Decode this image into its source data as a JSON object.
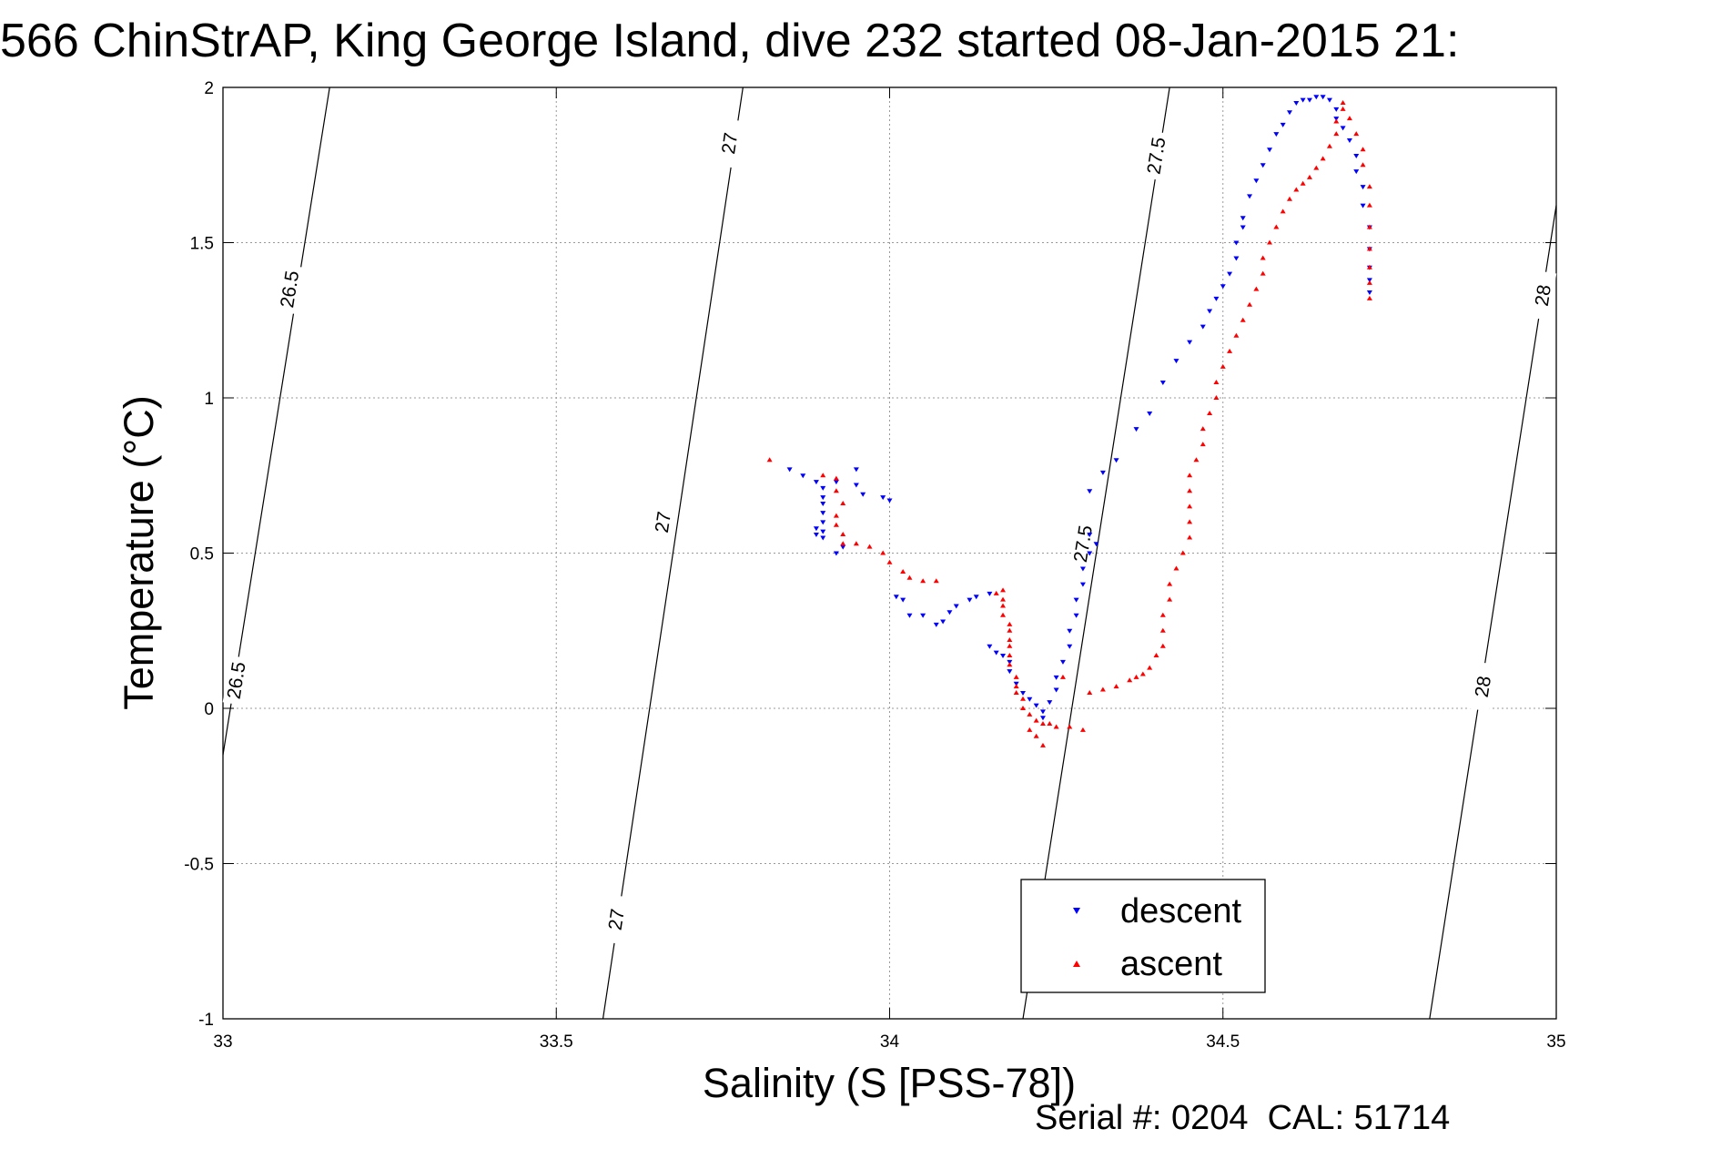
{
  "chart_data": {
    "type": "scatter",
    "title": "566 ChinStrAP, King George Island, dive 232 started 08-Jan-2015 21:",
    "xlabel": "Salinity (S [PSS-78])",
    "ylabel": "Temperature (°C)",
    "xlim": [
      33,
      35
    ],
    "ylim": [
      -1,
      2
    ],
    "x_ticks": [
      "33",
      "33.5",
      "34",
      "34.5",
      "35"
    ],
    "y_ticks": [
      "2",
      "1.5",
      "1",
      "0.5",
      "0",
      "-0.5",
      "-1"
    ],
    "grid": true,
    "legend": {
      "position": "bottom-right",
      "entries": [
        "descent",
        "ascent"
      ]
    },
    "footer": "Serial #: 0204  CAL: 51714",
    "colors": {
      "descent": "#0000ff",
      "ascent": "#ff0000",
      "grid": "#999999",
      "contour": "#000000"
    },
    "density_contours": [
      {
        "sigma": 26.5,
        "label": "26.5",
        "points": [
          [
            33.0,
            -0.15
          ],
          [
            33.16,
            2.0
          ]
        ],
        "labels_at": [
          [
            33.02,
            0.09
          ],
          [
            33.1,
            1.35
          ]
        ]
      },
      {
        "sigma": 27.0,
        "label": "27",
        "points": [
          [
            33.57,
            -1.0
          ],
          [
            33.78,
            2.0
          ]
        ],
        "labels_at": [
          [
            33.59,
            -0.68
          ],
          [
            33.66,
            0.6
          ],
          [
            33.76,
            1.82
          ]
        ]
      },
      {
        "sigma": 27.5,
        "label": "27.5",
        "points": [
          [
            34.2,
            -1.0
          ],
          [
            34.42,
            2.0
          ]
        ],
        "labels_at": [
          [
            34.29,
            0.53
          ],
          [
            34.4,
            1.78
          ]
        ]
      },
      {
        "sigma": 28.0,
        "label": "28",
        "points": [
          [
            34.81,
            -1.0
          ],
          [
            35.0,
            1.62
          ]
        ],
        "labels_at": [
          [
            34.89,
            0.07
          ],
          [
            34.98,
            1.33
          ]
        ]
      }
    ],
    "series": [
      {
        "name": "descent",
        "marker": "triangle-down",
        "points": [
          [
            33.85,
            0.77
          ],
          [
            33.87,
            0.75
          ],
          [
            33.89,
            0.73
          ],
          [
            33.9,
            0.71
          ],
          [
            33.9,
            0.68
          ],
          [
            33.9,
            0.66
          ],
          [
            33.9,
            0.63
          ],
          [
            33.9,
            0.6
          ],
          [
            33.89,
            0.58
          ],
          [
            33.89,
            0.56
          ],
          [
            33.9,
            0.55
          ],
          [
            33.9,
            0.57
          ],
          [
            33.92,
            0.5
          ],
          [
            33.93,
            0.52
          ],
          [
            33.92,
            0.73
          ],
          [
            33.95,
            0.77
          ],
          [
            33.95,
            0.72
          ],
          [
            33.96,
            0.69
          ],
          [
            33.99,
            0.68
          ],
          [
            34.0,
            0.67
          ],
          [
            34.01,
            0.36
          ],
          [
            34.02,
            0.35
          ],
          [
            34.03,
            0.3
          ],
          [
            34.05,
            0.3
          ],
          [
            34.07,
            0.27
          ],
          [
            34.08,
            0.28
          ],
          [
            34.09,
            0.31
          ],
          [
            34.1,
            0.33
          ],
          [
            34.12,
            0.35
          ],
          [
            34.13,
            0.36
          ],
          [
            34.15,
            0.37
          ],
          [
            34.15,
            0.2
          ],
          [
            34.16,
            0.18
          ],
          [
            34.17,
            0.17
          ],
          [
            34.18,
            0.15
          ],
          [
            34.18,
            0.12
          ],
          [
            34.19,
            0.08
          ],
          [
            34.2,
            0.05
          ],
          [
            34.21,
            0.03
          ],
          [
            34.22,
            0.01
          ],
          [
            34.23,
            -0.01
          ],
          [
            34.23,
            -0.03
          ],
          [
            34.24,
            0.02
          ],
          [
            34.25,
            0.06
          ],
          [
            34.25,
            0.1
          ],
          [
            34.26,
            0.15
          ],
          [
            34.27,
            0.2
          ],
          [
            34.27,
            0.25
          ],
          [
            34.28,
            0.3
          ],
          [
            34.28,
            0.35
          ],
          [
            34.29,
            0.4
          ],
          [
            34.29,
            0.45
          ],
          [
            34.3,
            0.5
          ],
          [
            34.31,
            0.53
          ],
          [
            34.3,
            0.56
          ],
          [
            34.3,
            0.7
          ],
          [
            34.32,
            0.76
          ],
          [
            34.34,
            0.8
          ],
          [
            34.37,
            0.9
          ],
          [
            34.39,
            0.95
          ],
          [
            34.41,
            1.05
          ],
          [
            34.43,
            1.12
          ],
          [
            34.45,
            1.18
          ],
          [
            34.47,
            1.23
          ],
          [
            34.48,
            1.28
          ],
          [
            34.49,
            1.32
          ],
          [
            34.5,
            1.36
          ],
          [
            34.51,
            1.4
          ],
          [
            34.52,
            1.45
          ],
          [
            34.52,
            1.5
          ],
          [
            34.53,
            1.55
          ],
          [
            34.53,
            1.58
          ],
          [
            34.54,
            1.65
          ],
          [
            34.55,
            1.7
          ],
          [
            34.56,
            1.75
          ],
          [
            34.57,
            1.8
          ],
          [
            34.58,
            1.85
          ],
          [
            34.59,
            1.88
          ],
          [
            34.6,
            1.92
          ],
          [
            34.61,
            1.95
          ],
          [
            34.62,
            1.96
          ],
          [
            34.63,
            1.96
          ],
          [
            34.64,
            1.97
          ],
          [
            34.65,
            1.97
          ],
          [
            34.66,
            1.96
          ],
          [
            34.67,
            1.93
          ],
          [
            34.67,
            1.9
          ],
          [
            34.68,
            1.87
          ],
          [
            34.69,
            1.83
          ],
          [
            34.7,
            1.78
          ],
          [
            34.7,
            1.73
          ],
          [
            34.71,
            1.68
          ],
          [
            34.71,
            1.62
          ],
          [
            34.72,
            1.55
          ],
          [
            34.72,
            1.48
          ],
          [
            34.72,
            1.42
          ],
          [
            34.72,
            1.38
          ],
          [
            34.72,
            1.34
          ]
        ]
      },
      {
        "name": "ascent",
        "marker": "triangle-up",
        "points": [
          [
            33.82,
            0.8
          ],
          [
            33.9,
            0.75
          ],
          [
            33.92,
            0.74
          ],
          [
            33.92,
            0.7
          ],
          [
            33.93,
            0.66
          ],
          [
            33.92,
            0.62
          ],
          [
            33.92,
            0.59
          ],
          [
            33.93,
            0.56
          ],
          [
            33.93,
            0.53
          ],
          [
            33.95,
            0.53
          ],
          [
            33.97,
            0.52
          ],
          [
            33.99,
            0.5
          ],
          [
            34.0,
            0.47
          ],
          [
            34.02,
            0.44
          ],
          [
            34.03,
            0.42
          ],
          [
            34.05,
            0.41
          ],
          [
            34.07,
            0.41
          ],
          [
            34.16,
            0.37
          ],
          [
            34.17,
            0.38
          ],
          [
            34.17,
            0.35
          ],
          [
            34.17,
            0.33
          ],
          [
            34.17,
            0.3
          ],
          [
            34.18,
            0.27
          ],
          [
            34.18,
            0.25
          ],
          [
            34.18,
            0.22
          ],
          [
            34.18,
            0.2
          ],
          [
            34.18,
            0.17
          ],
          [
            34.18,
            0.14
          ],
          [
            34.19,
            0.1
          ],
          [
            34.19,
            0.07
          ],
          [
            34.19,
            0.05
          ],
          [
            34.2,
            0.03
          ],
          [
            34.2,
            0.0
          ],
          [
            34.21,
            -0.02
          ],
          [
            34.22,
            -0.04
          ],
          [
            34.23,
            -0.05
          ],
          [
            34.24,
            -0.05
          ],
          [
            34.25,
            -0.06
          ],
          [
            34.27,
            -0.06
          ],
          [
            34.29,
            -0.07
          ],
          [
            34.21,
            -0.07
          ],
          [
            34.22,
            -0.09
          ],
          [
            34.23,
            -0.12
          ],
          [
            34.26,
            0.1
          ],
          [
            34.3,
            0.05
          ],
          [
            34.32,
            0.06
          ],
          [
            34.34,
            0.07
          ],
          [
            34.36,
            0.09
          ],
          [
            34.37,
            0.1
          ],
          [
            34.38,
            0.11
          ],
          [
            34.39,
            0.13
          ],
          [
            34.4,
            0.17
          ],
          [
            34.41,
            0.2
          ],
          [
            34.41,
            0.25
          ],
          [
            34.41,
            0.3
          ],
          [
            34.42,
            0.35
          ],
          [
            34.42,
            0.4
          ],
          [
            34.43,
            0.45
          ],
          [
            34.44,
            0.5
          ],
          [
            34.45,
            0.55
          ],
          [
            34.45,
            0.6
          ],
          [
            34.45,
            0.65
          ],
          [
            34.45,
            0.7
          ],
          [
            34.45,
            0.75
          ],
          [
            34.46,
            0.8
          ],
          [
            34.47,
            0.85
          ],
          [
            34.47,
            0.9
          ],
          [
            34.48,
            0.95
          ],
          [
            34.49,
            1.0
          ],
          [
            34.49,
            1.05
          ],
          [
            34.5,
            1.1
          ],
          [
            34.51,
            1.15
          ],
          [
            34.52,
            1.2
          ],
          [
            34.53,
            1.25
          ],
          [
            34.54,
            1.3
          ],
          [
            34.55,
            1.35
          ],
          [
            34.56,
            1.4
          ],
          [
            34.56,
            1.45
          ],
          [
            34.57,
            1.5
          ],
          [
            34.58,
            1.55
          ],
          [
            34.59,
            1.6
          ],
          [
            34.6,
            1.64
          ],
          [
            34.61,
            1.67
          ],
          [
            34.62,
            1.69
          ],
          [
            34.63,
            1.71
          ],
          [
            34.64,
            1.74
          ],
          [
            34.65,
            1.77
          ],
          [
            34.66,
            1.81
          ],
          [
            34.67,
            1.85
          ],
          [
            34.67,
            1.89
          ],
          [
            34.68,
            1.93
          ],
          [
            34.68,
            1.95
          ],
          [
            34.69,
            1.9
          ],
          [
            34.7,
            1.85
          ],
          [
            34.71,
            1.8
          ],
          [
            34.71,
            1.75
          ],
          [
            34.72,
            1.68
          ],
          [
            34.72,
            1.62
          ],
          [
            34.72,
            1.55
          ],
          [
            34.72,
            1.48
          ],
          [
            34.72,
            1.42
          ],
          [
            34.72,
            1.37
          ],
          [
            34.72,
            1.32
          ]
        ]
      }
    ]
  }
}
